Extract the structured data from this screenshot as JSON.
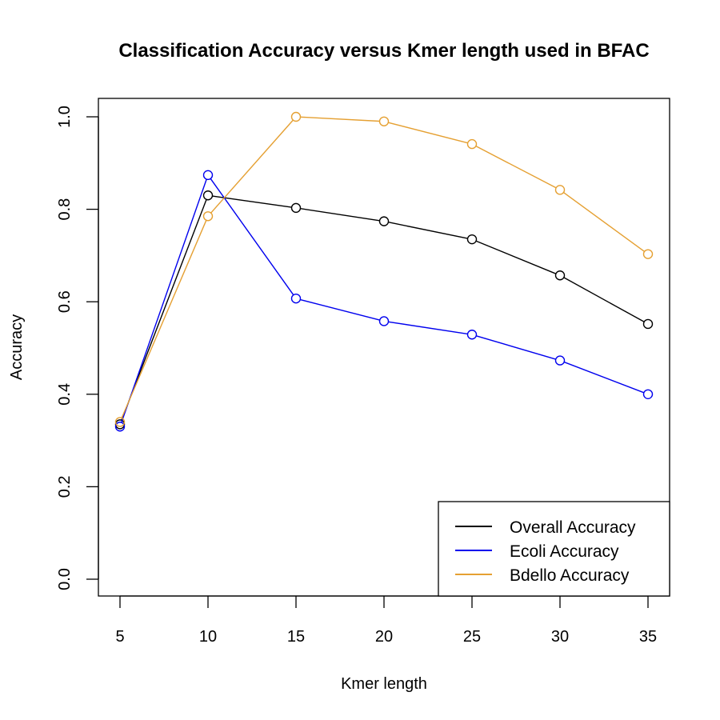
{
  "chart_data": {
    "type": "line",
    "title": "Classification Accuracy versus Kmer length used in BFAC",
    "xlabel": "Kmer length",
    "ylabel": "Accuracy",
    "x": [
      5,
      10,
      15,
      20,
      25,
      30,
      35
    ],
    "xticks": [
      "5",
      "10",
      "15",
      "20",
      "25",
      "30",
      "35"
    ],
    "yticks": [
      "0.0",
      "0.2",
      "0.4",
      "0.6",
      "0.8",
      "1.0"
    ],
    "xlim": [
      5,
      35
    ],
    "ylim": [
      0,
      1
    ],
    "grid": false,
    "legend_position": "bottom-right",
    "marker": "open-circle",
    "series": [
      {
        "name": "Overall Accuracy",
        "color": "#000000",
        "values": [
          0.335,
          0.83,
          0.803,
          0.774,
          0.735,
          0.657,
          0.552
        ]
      },
      {
        "name": "Ecoli Accuracy",
        "color": "#0000ee",
        "values": [
          0.33,
          0.874,
          0.607,
          0.558,
          0.529,
          0.473,
          0.4
        ]
      },
      {
        "name": "Bdello Accuracy",
        "color": "#e5a032",
        "values": [
          0.34,
          0.785,
          1.0,
          0.99,
          0.941,
          0.842,
          0.703
        ]
      }
    ]
  }
}
